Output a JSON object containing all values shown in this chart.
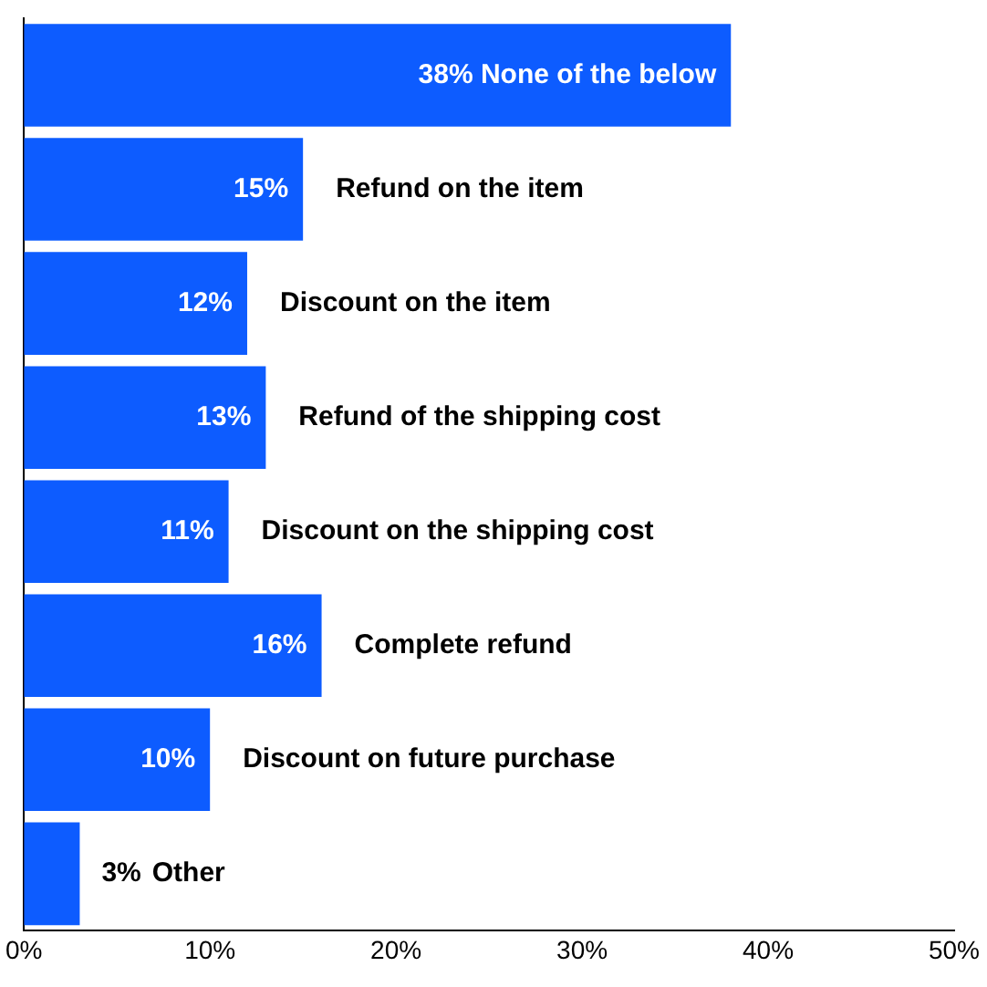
{
  "chart_data": {
    "type": "bar",
    "orientation": "horizontal",
    "categories": [
      "None of the below",
      "Refund on the item",
      "Discount on the item",
      "Refund of the shipping cost",
      "Discount on the shipping cost",
      "Complete refund",
      "Discount on future purchase",
      "Other"
    ],
    "values": [
      38,
      15,
      12,
      13,
      11,
      16,
      10,
      3
    ],
    "value_labels": [
      "38%",
      "15%",
      "12%",
      "13%",
      "11%",
      "16%",
      "10%",
      "3%"
    ],
    "color": "#0d5cff",
    "xlim": [
      0,
      50
    ],
    "xticks": [
      {
        "value": 0,
        "label": "0%"
      },
      {
        "value": 10,
        "label": "10%"
      },
      {
        "value": 20,
        "label": "20%"
      },
      {
        "value": 30,
        "label": "30%"
      },
      {
        "value": 40,
        "label": "40%"
      },
      {
        "value": 50,
        "label": "50%"
      }
    ],
    "grid": false,
    "legend": false
  }
}
